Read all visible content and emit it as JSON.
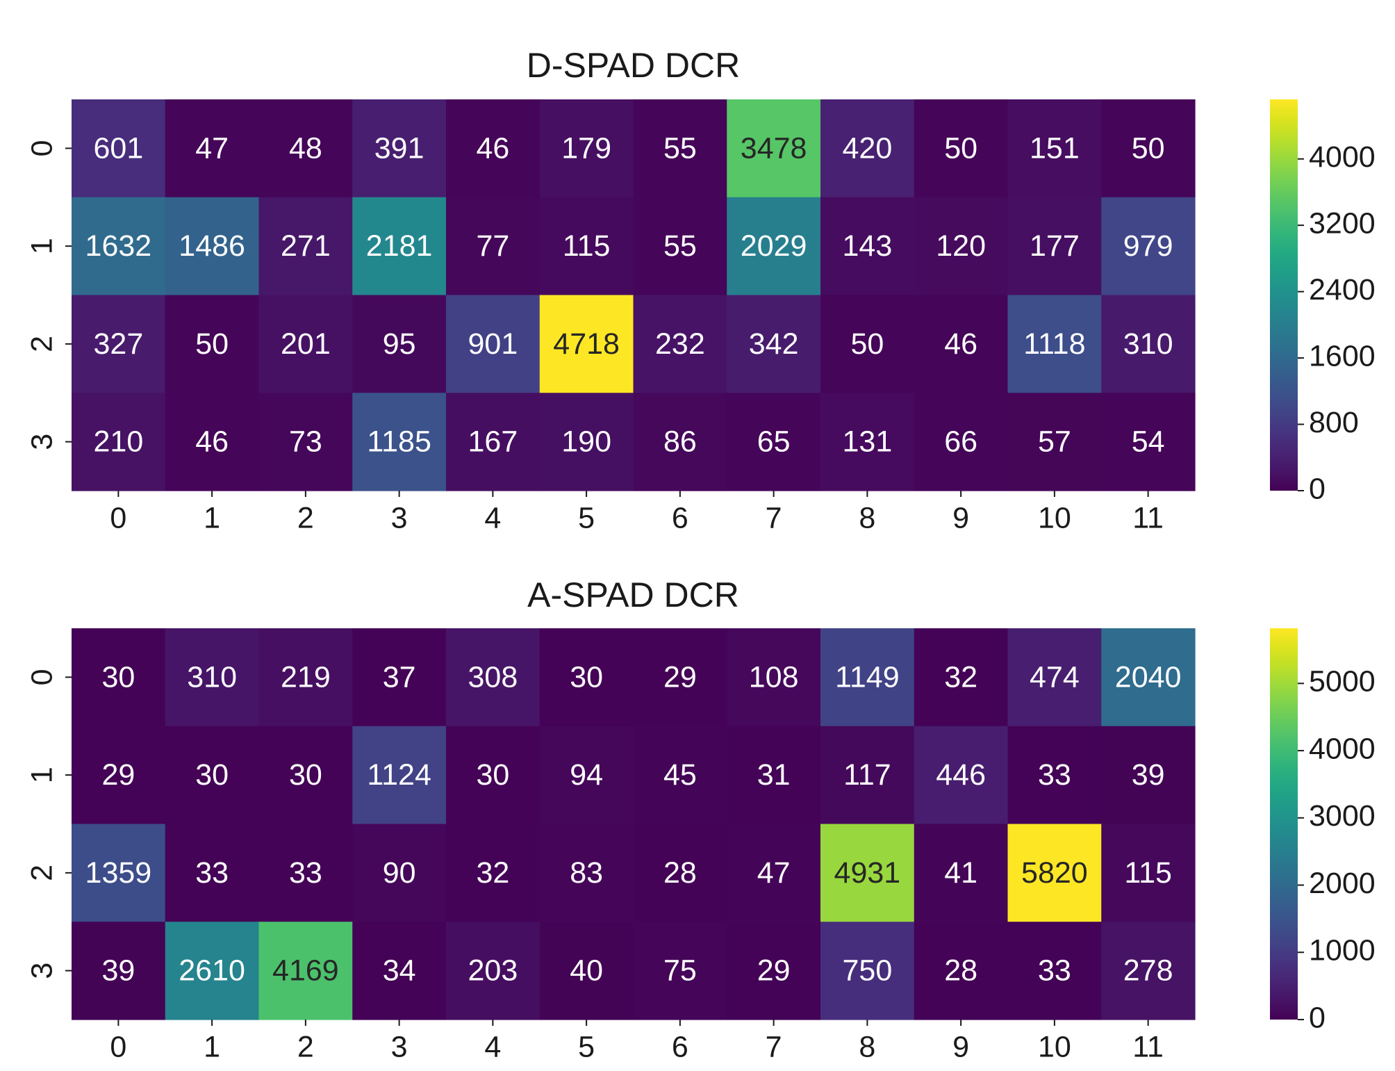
{
  "chart_data": [
    {
      "type": "heatmap",
      "title": "D-SPAD DCR",
      "xlabel": "",
      "ylabel": "",
      "x_tick_labels": [
        "0",
        "1",
        "2",
        "3",
        "4",
        "5",
        "6",
        "7",
        "8",
        "9",
        "10",
        "11"
      ],
      "y_tick_labels": [
        "0",
        "1",
        "2",
        "3"
      ],
      "values": [
        [
          601,
          47,
          48,
          391,
          46,
          179,
          55,
          3478,
          420,
          50,
          151,
          50
        ],
        [
          1632,
          1486,
          271,
          2181,
          77,
          115,
          55,
          2029,
          143,
          120,
          177,
          979
        ],
        [
          327,
          50,
          201,
          95,
          901,
          4718,
          232,
          342,
          50,
          46,
          1118,
          310
        ],
        [
          210,
          46,
          73,
          1185,
          167,
          190,
          86,
          65,
          131,
          66,
          57,
          54
        ]
      ],
      "colormap": "viridis",
      "vmin": 0,
      "vmax": 4718,
      "colorbar_ticks": [
        0,
        800,
        1600,
        2400,
        3200,
        4000
      ],
      "colorbar_tick_labels": [
        "0",
        "800",
        "1600",
        "2400",
        "3200",
        "4000"
      ],
      "annotated": true
    },
    {
      "type": "heatmap",
      "title": "A-SPAD DCR",
      "xlabel": "",
      "ylabel": "",
      "x_tick_labels": [
        "0",
        "1",
        "2",
        "3",
        "4",
        "5",
        "6",
        "7",
        "8",
        "9",
        "10",
        "11"
      ],
      "y_tick_labels": [
        "0",
        "1",
        "2",
        "3"
      ],
      "values": [
        [
          30,
          310,
          219,
          37,
          308,
          30,
          29,
          108,
          1149,
          32,
          474,
          2040
        ],
        [
          29,
          30,
          30,
          1124,
          30,
          94,
          45,
          31,
          117,
          446,
          33,
          39
        ],
        [
          1359,
          33,
          33,
          90,
          32,
          83,
          28,
          47,
          4931,
          41,
          5820,
          115
        ],
        [
          39,
          2610,
          4169,
          34,
          203,
          40,
          75,
          29,
          750,
          28,
          33,
          278
        ]
      ],
      "colormap": "viridis",
      "vmin": 0,
      "vmax": 5820,
      "colorbar_ticks": [
        0,
        1000,
        2000,
        3000,
        4000,
        5000
      ],
      "colorbar_tick_labels": [
        "0",
        "1000",
        "2000",
        "3000",
        "4000",
        "5000"
      ],
      "annotated": true
    }
  ]
}
